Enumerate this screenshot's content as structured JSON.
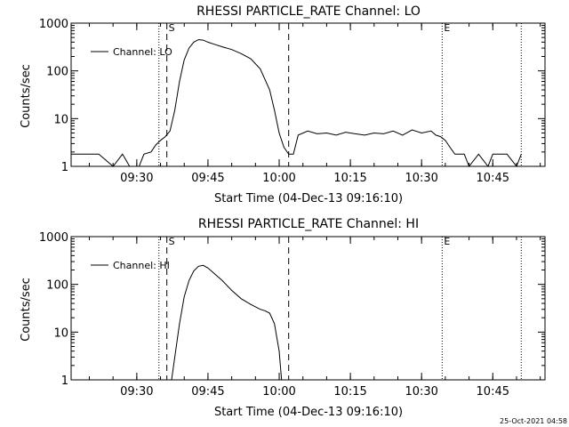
{
  "footer": {
    "timestamp": "25-Oct-2021 04:58"
  },
  "colors": {
    "background": "#ffffff",
    "ink": "#000000"
  },
  "chart_data": [
    {
      "type": "line",
      "title": "RHESSI PARTICLE_RATE Channel: LO",
      "xlabel": "Start Time (04-Dec-13 09:16:10)",
      "ylabel": "Counts/sec",
      "y_scale": "log",
      "ylim": [
        1,
        1000
      ],
      "xlim": [
        "09:16:10",
        "10:56:00"
      ],
      "grid": false,
      "legend_position": "top-left",
      "x_ticks": [
        "09:30",
        "09:45",
        "10:00",
        "10:15",
        "10:30",
        "10:45"
      ],
      "y_ticks": [
        "1",
        "10",
        "100",
        "1000"
      ],
      "markers": [
        {
          "label": "",
          "time": "09:34:40",
          "style": "dotted"
        },
        {
          "label": "S",
          "time": "09:36:20",
          "style": "dashed"
        },
        {
          "label": "",
          "time": "10:02:00",
          "style": "dashed"
        },
        {
          "label": "E",
          "time": "10:34:20",
          "style": "dotted"
        },
        {
          "label": "",
          "time": "10:51:00",
          "style": "dotted"
        }
      ],
      "series": [
        {
          "name": "Channel: LO",
          "points": [
            [
              "09:16:10",
              1.8
            ],
            [
              "09:22:00",
              1.8
            ],
            [
              "09:25:00",
              1.0
            ],
            [
              "09:27:00",
              1.8
            ],
            [
              "09:28:30",
              1.0
            ],
            [
              "09:30:30",
              1.0
            ],
            [
              "09:31:30",
              1.8
            ],
            [
              "09:33:00",
              2.0
            ],
            [
              "09:34:00",
              2.8
            ],
            [
              "09:35:00",
              3.5
            ],
            [
              "09:36:00",
              4.2
            ],
            [
              "09:37:00",
              5.5
            ],
            [
              "09:38:00",
              15
            ],
            [
              "09:39:00",
              60
            ],
            [
              "09:40:00",
              170
            ],
            [
              "09:41:00",
              300
            ],
            [
              "09:42:00",
              400
            ],
            [
              "09:43:00",
              450
            ],
            [
              "09:44:00",
              440
            ],
            [
              "09:45:00",
              400
            ],
            [
              "09:46:00",
              370
            ],
            [
              "09:48:00",
              320
            ],
            [
              "09:50:00",
              280
            ],
            [
              "09:52:00",
              230
            ],
            [
              "09:54:00",
              180
            ],
            [
              "09:56:00",
              110
            ],
            [
              "09:58:00",
              40
            ],
            [
              "09:59:00",
              15
            ],
            [
              "10:00:00",
              5
            ],
            [
              "10:01:00",
              2.5
            ],
            [
              "10:02:00",
              1.8
            ],
            [
              "10:03:00",
              1.8
            ],
            [
              "10:04:00",
              4.5
            ],
            [
              "10:06:00",
              5.5
            ],
            [
              "10:08:00",
              4.8
            ],
            [
              "10:10:00",
              5.0
            ],
            [
              "10:12:00",
              4.5
            ],
            [
              "10:14:00",
              5.2
            ],
            [
              "10:16:00",
              4.8
            ],
            [
              "10:18:00",
              4.5
            ],
            [
              "10:20:00",
              5.0
            ],
            [
              "10:22:00",
              4.8
            ],
            [
              "10:24:00",
              5.5
            ],
            [
              "10:26:00",
              4.5
            ],
            [
              "10:28:00",
              5.8
            ],
            [
              "10:30:00",
              5.0
            ],
            [
              "10:32:00",
              5.5
            ],
            [
              "10:33:00",
              4.5
            ],
            [
              "10:34:00",
              4.2
            ],
            [
              "10:35:00",
              3.5
            ],
            [
              "10:36:00",
              2.5
            ],
            [
              "10:37:00",
              1.8
            ],
            [
              "10:39:00",
              1.8
            ],
            [
              "10:40:00",
              1.0
            ],
            [
              "10:42:00",
              1.8
            ],
            [
              "10:44:00",
              1.0
            ],
            [
              "10:45:00",
              1.8
            ],
            [
              "10:48:00",
              1.8
            ],
            [
              "10:50:00",
              1.0
            ],
            [
              "10:51:00",
              1.8
            ]
          ]
        }
      ]
    },
    {
      "type": "line",
      "title": "RHESSI PARTICLE_RATE Channel: HI",
      "xlabel": "Start Time (04-Dec-13 09:16:10)",
      "ylabel": "Counts/sec",
      "y_scale": "log",
      "ylim": [
        1,
        1000
      ],
      "xlim": [
        "09:16:10",
        "10:56:00"
      ],
      "grid": false,
      "legend_position": "top-left",
      "x_ticks": [
        "09:30",
        "09:45",
        "10:00",
        "10:15",
        "10:30",
        "10:45"
      ],
      "y_ticks": [
        "1",
        "10",
        "100",
        "1000"
      ],
      "markers": [
        {
          "label": "",
          "time": "09:34:40",
          "style": "dotted"
        },
        {
          "label": "S",
          "time": "09:36:20",
          "style": "dashed"
        },
        {
          "label": "",
          "time": "10:02:00",
          "style": "dashed"
        },
        {
          "label": "E",
          "time": "10:34:20",
          "style": "dotted"
        },
        {
          "label": "",
          "time": "10:51:00",
          "style": "dotted"
        }
      ],
      "series": [
        {
          "name": "Channel: HI",
          "points": [
            [
              "09:37:20",
              1.0
            ],
            [
              "09:38:00",
              3
            ],
            [
              "09:39:00",
              15
            ],
            [
              "09:40:00",
              55
            ],
            [
              "09:41:00",
              120
            ],
            [
              "09:42:00",
              190
            ],
            [
              "09:43:00",
              240
            ],
            [
              "09:44:00",
              250
            ],
            [
              "09:45:00",
              220
            ],
            [
              "09:46:00",
              180
            ],
            [
              "09:48:00",
              120
            ],
            [
              "09:50:00",
              75
            ],
            [
              "09:52:00",
              50
            ],
            [
              "09:54:00",
              38
            ],
            [
              "09:56:00",
              30
            ],
            [
              "09:57:00",
              28
            ],
            [
              "09:58:00",
              25
            ],
            [
              "09:59:00",
              15
            ],
            [
              "10:00:00",
              4
            ],
            [
              "10:00:30",
              1.0
            ]
          ]
        }
      ]
    }
  ]
}
